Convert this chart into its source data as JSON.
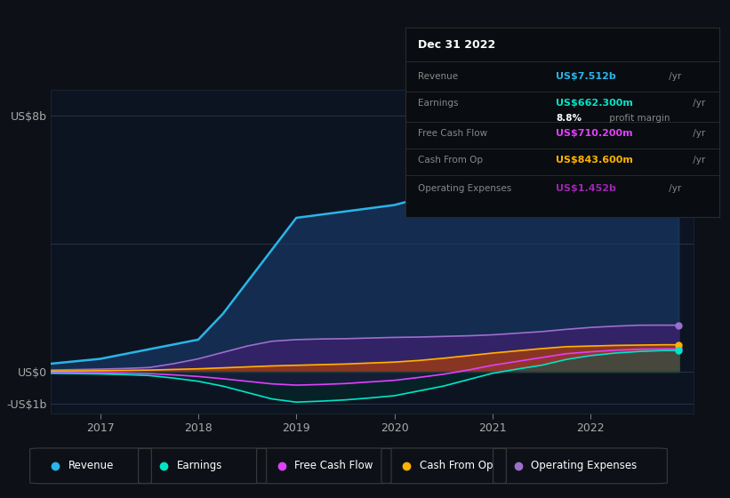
{
  "bg_color": "#0d1117",
  "plot_bg_color": "#0d1421",
  "grid_color": "#1e2a3a",
  "ylabel_text": "US$8b",
  "ylabel_zero": "US$0",
  "ylabel_neg": "-US$1b",
  "x_years": [
    2016.5,
    2017.0,
    2017.25,
    2017.5,
    2017.75,
    2018.0,
    2018.25,
    2018.5,
    2018.75,
    2019.0,
    2019.25,
    2019.5,
    2019.75,
    2020.0,
    2020.25,
    2020.5,
    2020.75,
    2021.0,
    2021.25,
    2021.5,
    2021.75,
    2022.0,
    2022.25,
    2022.5,
    2022.75,
    2022.9
  ],
  "revenue": [
    0.25,
    0.4,
    0.55,
    0.7,
    0.85,
    1.0,
    1.8,
    2.8,
    3.8,
    4.8,
    4.9,
    5.0,
    5.1,
    5.2,
    5.4,
    5.6,
    5.9,
    6.3,
    6.5,
    6.7,
    7.0,
    7.2,
    7.35,
    7.45,
    7.52,
    7.55
  ],
  "earnings": [
    -0.05,
    -0.07,
    -0.09,
    -0.12,
    -0.2,
    -0.3,
    -0.45,
    -0.65,
    -0.85,
    -0.95,
    -0.92,
    -0.88,
    -0.82,
    -0.75,
    -0.6,
    -0.45,
    -0.25,
    -0.05,
    0.08,
    0.2,
    0.38,
    0.5,
    0.58,
    0.63,
    0.66,
    0.66
  ],
  "free_cash": [
    -0.02,
    -0.03,
    -0.04,
    -0.06,
    -0.1,
    -0.15,
    -0.22,
    -0.3,
    -0.38,
    -0.42,
    -0.4,
    -0.37,
    -0.32,
    -0.27,
    -0.18,
    -0.08,
    0.05,
    0.2,
    0.32,
    0.44,
    0.56,
    0.62,
    0.67,
    0.7,
    0.71,
    0.71
  ],
  "cash_from_op": [
    0.02,
    0.03,
    0.04,
    0.05,
    0.07,
    0.09,
    0.12,
    0.15,
    0.18,
    0.2,
    0.22,
    0.24,
    0.27,
    0.3,
    0.35,
    0.42,
    0.5,
    0.58,
    0.65,
    0.72,
    0.78,
    0.8,
    0.82,
    0.83,
    0.84,
    0.84
  ],
  "op_expenses": [
    0.05,
    0.08,
    0.1,
    0.13,
    0.25,
    0.4,
    0.6,
    0.8,
    0.95,
    1.0,
    1.02,
    1.03,
    1.05,
    1.07,
    1.08,
    1.1,
    1.12,
    1.15,
    1.2,
    1.25,
    1.32,
    1.38,
    1.42,
    1.45,
    1.452,
    1.45
  ],
  "revenue_color": "#29b5e8",
  "earnings_color": "#00e5c8",
  "free_cash_color": "#e040fb",
  "cash_from_op_color": "#ffb300",
  "op_expenses_color": "#9c6fcc",
  "info_box": {
    "date": "Dec 31 2022",
    "revenue_label": "Revenue",
    "revenue_val": "US$7.512b",
    "revenue_color": "#29b5e8",
    "earnings_label": "Earnings",
    "earnings_val": "US$662.300m",
    "earnings_color": "#00e5c8",
    "margin_text": "8.8%",
    "margin_rest": " profit margin",
    "free_cash_label": "Free Cash Flow",
    "free_cash_val": "US$710.200m",
    "free_cash_color": "#e040fb",
    "cash_op_label": "Cash From Op",
    "cash_op_val": "US$843.600m",
    "cash_op_color": "#ffb300",
    "op_exp_label": "Operating Expenses",
    "op_exp_val": "US$1.452b",
    "op_exp_color": "#9c27b0"
  },
  "legend_items": [
    {
      "label": "Revenue",
      "color": "#29b5e8"
    },
    {
      "label": "Earnings",
      "color": "#00e5c8"
    },
    {
      "label": "Free Cash Flow",
      "color": "#e040fb"
    },
    {
      "label": "Cash From Op",
      "color": "#ffb300"
    },
    {
      "label": "Operating Expenses",
      "color": "#9c6fcc"
    }
  ]
}
